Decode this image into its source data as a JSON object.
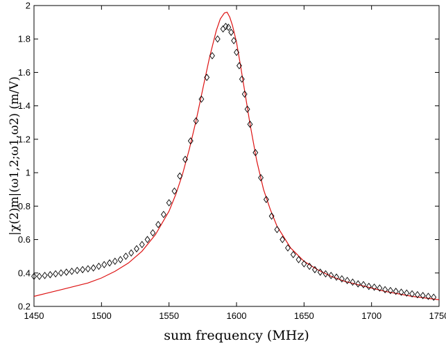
{
  "chart_data": {
    "type": "scatter",
    "title": "",
    "xlabel": "sum frequency (MHz)",
    "ylabel": "|χ(2)m|(ω1,2;ω1,ω2) (m/V)",
    "xlim": [
      1450,
      1750
    ],
    "ylim": [
      0.2,
      2
    ],
    "x_ticks": [
      1450,
      1500,
      1550,
      1600,
      1650,
      1700,
      1750
    ],
    "x_tick_labels": [
      "1450",
      "1500",
      "1550",
      "1600",
      "1650",
      "1700",
      "1750"
    ],
    "y_ticks": [
      0.2,
      0.4,
      0.6,
      0.8,
      1,
      1.2,
      1.4,
      1.6,
      1.8,
      2
    ],
    "y_tick_labels": [
      "0.2",
      "0.4",
      "0.6",
      "0.8",
      "1",
      "1.2",
      "1.4",
      "1.6",
      "1.8",
      "2"
    ],
    "grid": false,
    "legend": "none",
    "series": [
      {
        "kind": "markers",
        "marker": "diamond",
        "color": "#000000",
        "x": [
          1450,
          1454,
          1458,
          1462,
          1466,
          1470,
          1474,
          1478,
          1482,
          1486,
          1490,
          1494,
          1498,
          1502,
          1506,
          1510,
          1514,
          1518,
          1522,
          1526,
          1530,
          1534,
          1538,
          1542,
          1546,
          1550,
          1554,
          1558,
          1562,
          1566,
          1570,
          1574,
          1578,
          1582,
          1586,
          1590,
          1592,
          1594,
          1596,
          1598,
          1600,
          1602,
          1604,
          1606,
          1608,
          1610,
          1614,
          1618,
          1622,
          1626,
          1630,
          1634,
          1638,
          1642,
          1646,
          1650,
          1654,
          1658,
          1662,
          1666,
          1670,
          1674,
          1678,
          1682,
          1686,
          1690,
          1694,
          1698,
          1702,
          1706,
          1710,
          1714,
          1718,
          1722,
          1726,
          1730,
          1734,
          1738,
          1742,
          1746
        ],
        "y": [
          0.38,
          0.38,
          0.385,
          0.39,
          0.395,
          0.4,
          0.405,
          0.41,
          0.415,
          0.42,
          0.425,
          0.43,
          0.44,
          0.45,
          0.46,
          0.47,
          0.48,
          0.5,
          0.52,
          0.545,
          0.57,
          0.6,
          0.64,
          0.69,
          0.75,
          0.82,
          0.89,
          0.98,
          1.08,
          1.19,
          1.31,
          1.44,
          1.57,
          1.7,
          1.8,
          1.86,
          1.875,
          1.87,
          1.84,
          1.79,
          1.72,
          1.64,
          1.56,
          1.47,
          1.38,
          1.29,
          1.12,
          0.97,
          0.84,
          0.74,
          0.66,
          0.6,
          0.55,
          0.51,
          0.48,
          0.455,
          0.44,
          0.42,
          0.405,
          0.395,
          0.385,
          0.375,
          0.365,
          0.355,
          0.345,
          0.335,
          0.33,
          0.32,
          0.315,
          0.31,
          0.3,
          0.295,
          0.29,
          0.285,
          0.28,
          0.275,
          0.27,
          0.265,
          0.26,
          0.255
        ]
      },
      {
        "kind": "line",
        "color": "#dd1111",
        "x": [
          1450,
          1460,
          1470,
          1480,
          1490,
          1500,
          1510,
          1520,
          1530,
          1540,
          1550,
          1555,
          1560,
          1565,
          1570,
          1575,
          1580,
          1585,
          1588,
          1591,
          1593,
          1595,
          1597,
          1600,
          1603,
          1606,
          1610,
          1615,
          1620,
          1625,
          1630,
          1640,
          1650,
          1660,
          1670,
          1680,
          1690,
          1700,
          1710,
          1720,
          1730,
          1740,
          1750
        ],
        "y": [
          0.26,
          0.28,
          0.3,
          0.32,
          0.34,
          0.37,
          0.41,
          0.46,
          0.53,
          0.63,
          0.77,
          0.87,
          0.99,
          1.14,
          1.31,
          1.5,
          1.69,
          1.85,
          1.92,
          1.955,
          1.96,
          1.93,
          1.88,
          1.78,
          1.64,
          1.49,
          1.29,
          1.07,
          0.9,
          0.78,
          0.68,
          0.55,
          0.47,
          0.42,
          0.38,
          0.35,
          0.33,
          0.31,
          0.29,
          0.275,
          0.26,
          0.25,
          0.24
        ]
      }
    ]
  }
}
